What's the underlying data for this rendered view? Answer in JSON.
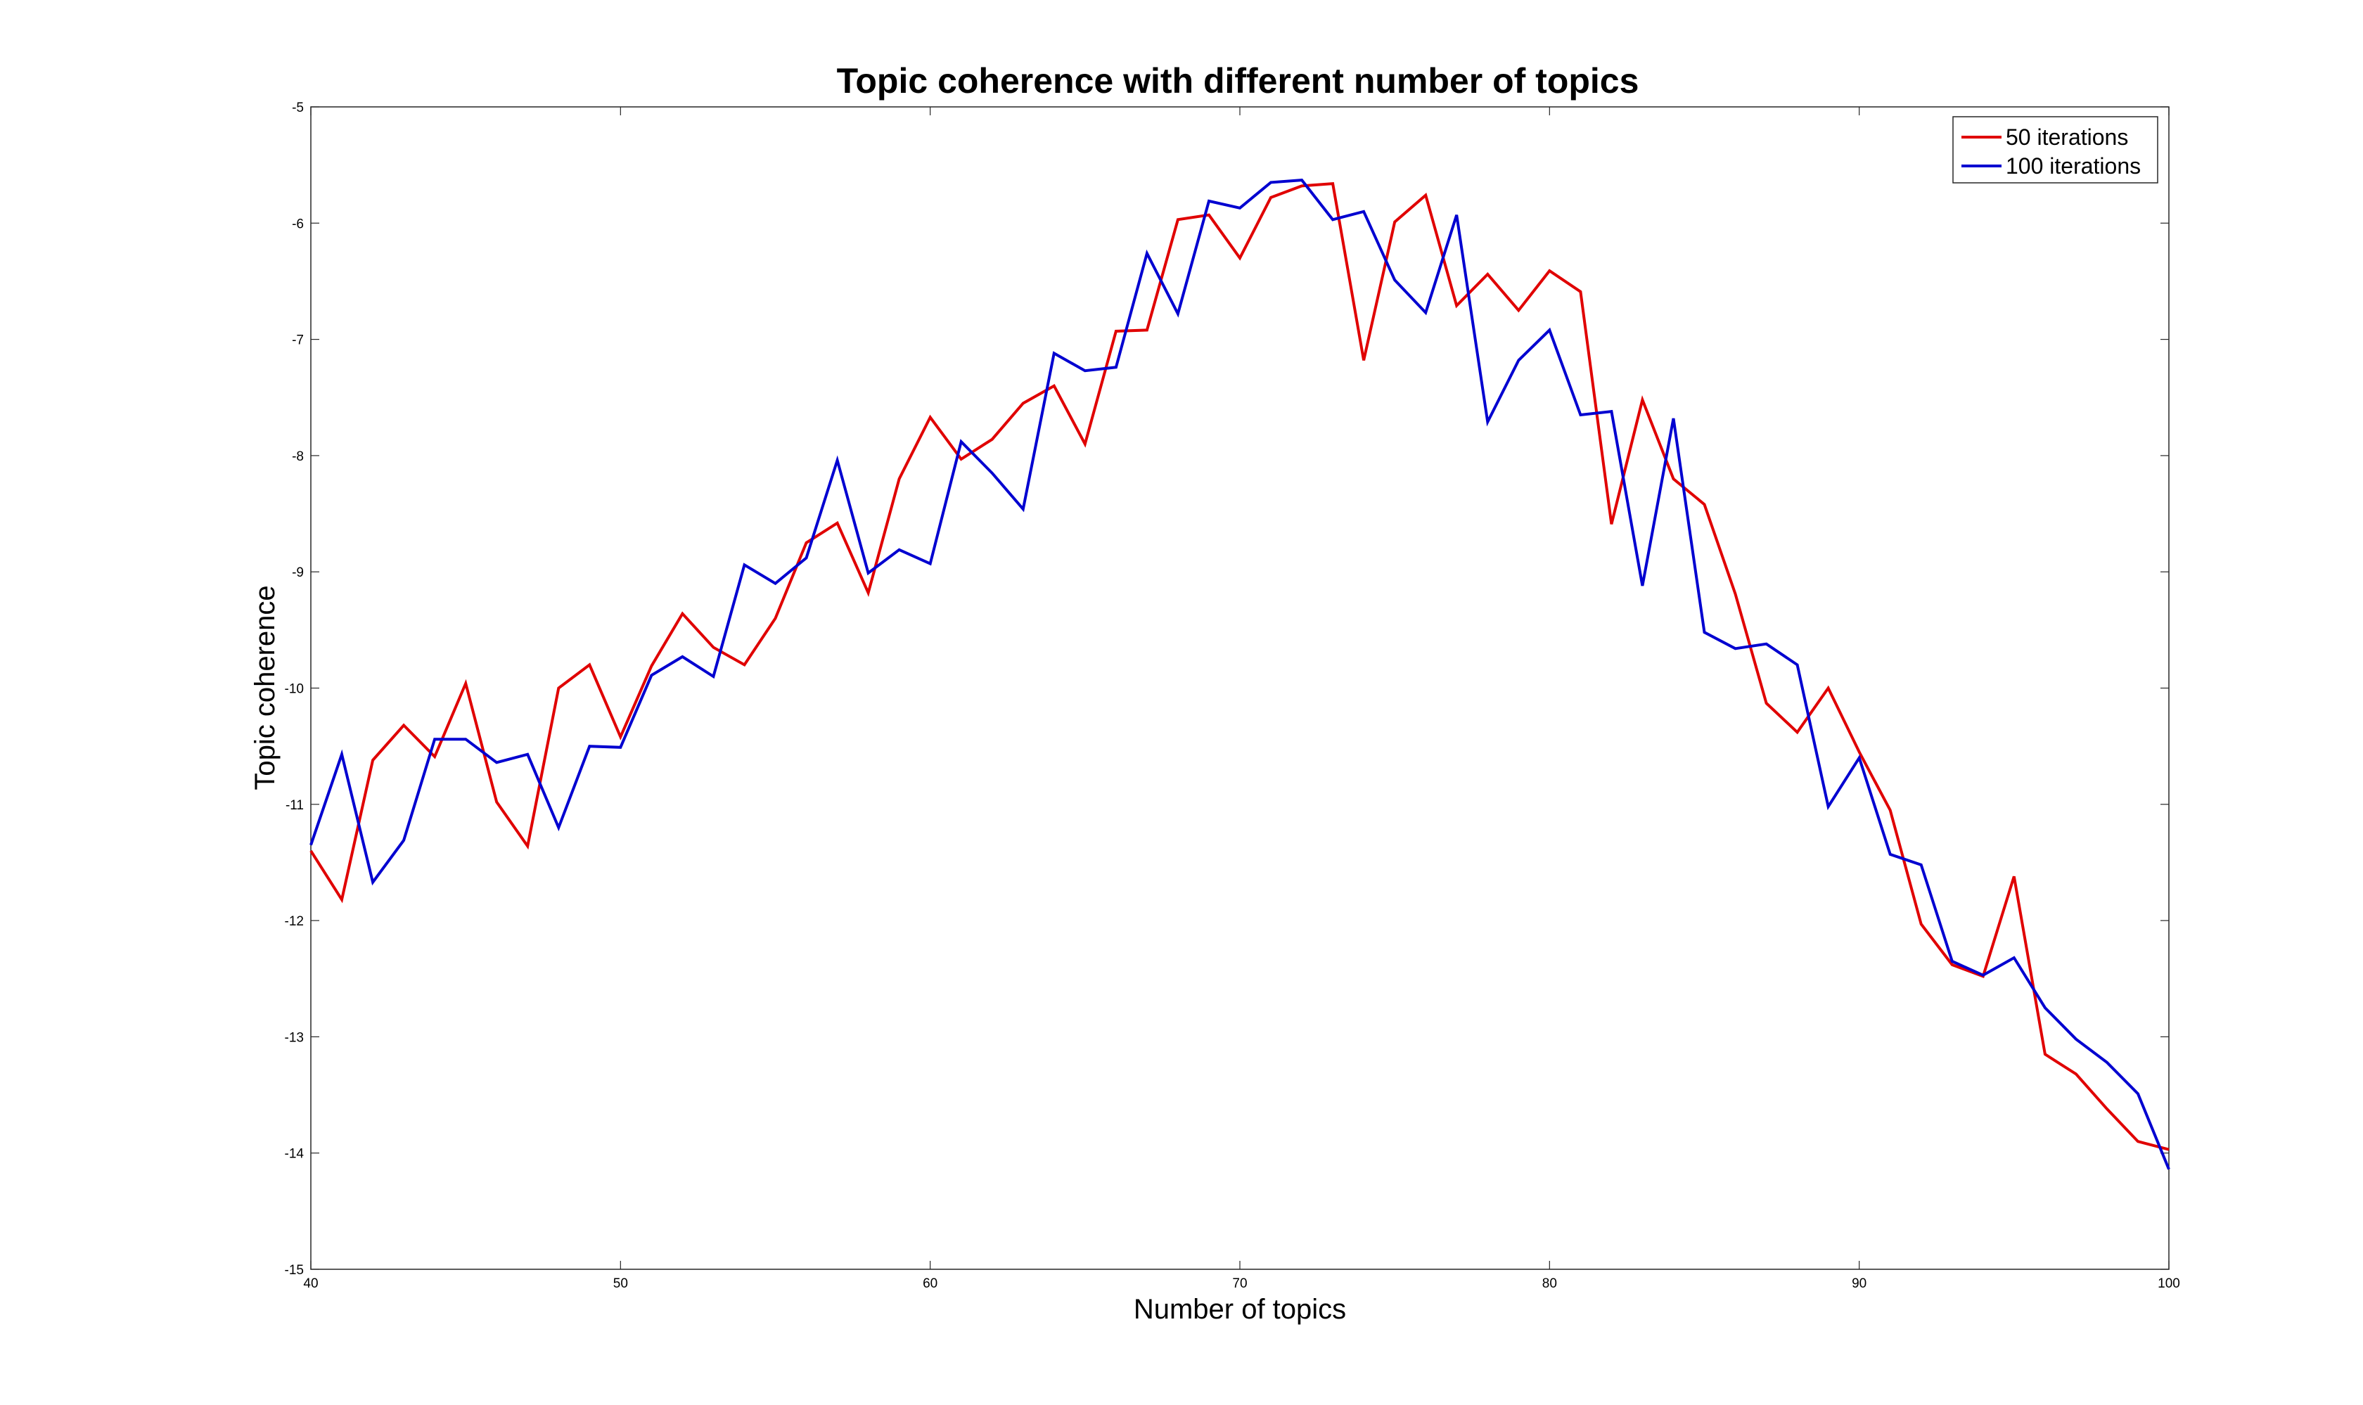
{
  "chart_data": {
    "type": "line",
    "title": "Topic coherence with different number of topics",
    "xlabel": "Number of topics",
    "ylabel": "Topic coherence",
    "xlim": [
      40,
      100
    ],
    "ylim": [
      -15,
      -5
    ],
    "xticks": [
      40,
      50,
      60,
      70,
      80,
      90,
      100
    ],
    "yticks": [
      -15,
      -14,
      -13,
      -12,
      -11,
      -10,
      -9,
      -8,
      -7,
      -6,
      -5
    ],
    "grid": false,
    "legend_position": "top-right",
    "x": [
      40,
      41,
      42,
      43,
      44,
      45,
      46,
      47,
      48,
      49,
      50,
      51,
      52,
      53,
      54,
      55,
      56,
      57,
      58,
      59,
      60,
      61,
      62,
      63,
      64,
      65,
      66,
      67,
      68,
      69,
      70,
      71,
      72,
      73,
      74,
      75,
      76,
      77,
      78,
      79,
      80,
      81,
      82,
      83,
      84,
      85,
      86,
      87,
      88,
      89,
      90,
      91,
      92,
      93,
      94,
      95,
      96,
      97,
      98,
      99,
      100
    ],
    "series": [
      {
        "name": "50 iterations",
        "color": "#e00000",
        "values": [
          -11.4,
          -11.82,
          -10.62,
          -10.32,
          -10.59,
          -9.96,
          -10.98,
          -11.36,
          -10.0,
          -9.8,
          -10.42,
          -9.81,
          -9.36,
          -9.65,
          -9.8,
          -9.4,
          -8.75,
          -8.58,
          -9.18,
          -8.2,
          -7.67,
          -8.03,
          -7.86,
          -7.55,
          -7.4,
          -7.9,
          -6.93,
          -6.92,
          -5.97,
          -5.93,
          -6.3,
          -5.78,
          -5.68,
          -5.66,
          -7.18,
          -5.99,
          -5.76,
          -6.71,
          -6.44,
          -6.75,
          -6.41,
          -6.59,
          -8.59,
          -7.52,
          -8.2,
          -8.42,
          -9.19,
          -10.13,
          -10.38,
          -10.0,
          -10.55,
          -11.05,
          -12.03,
          -12.38,
          -12.48,
          -11.62,
          -13.15,
          -13.32,
          -13.62,
          -13.9,
          -13.97
        ]
      },
      {
        "name": "100 iterations",
        "color": "#0000d0",
        "values": [
          -11.35,
          -10.57,
          -11.67,
          -11.31,
          -10.44,
          -10.44,
          -10.64,
          -10.57,
          -11.2,
          -10.5,
          -10.51,
          -9.89,
          -9.73,
          -9.9,
          -8.94,
          -9.1,
          -8.88,
          -8.04,
          -9.01,
          -8.81,
          -8.93,
          -7.88,
          -8.15,
          -8.46,
          -7.12,
          -7.27,
          -7.24,
          -6.26,
          -6.78,
          -5.81,
          -5.87,
          -5.65,
          -5.63,
          -5.97,
          -5.9,
          -6.49,
          -6.77,
          -5.93,
          -7.71,
          -7.18,
          -6.92,
          -7.65,
          -7.62,
          -9.12,
          -7.68,
          -9.52,
          -9.66,
          -9.62,
          -9.8,
          -11.02,
          -10.6,
          -11.43,
          -11.52,
          -12.35,
          -12.47,
          -12.32,
          -12.75,
          -13.02,
          -13.22,
          -13.49,
          -14.14
        ]
      }
    ]
  }
}
